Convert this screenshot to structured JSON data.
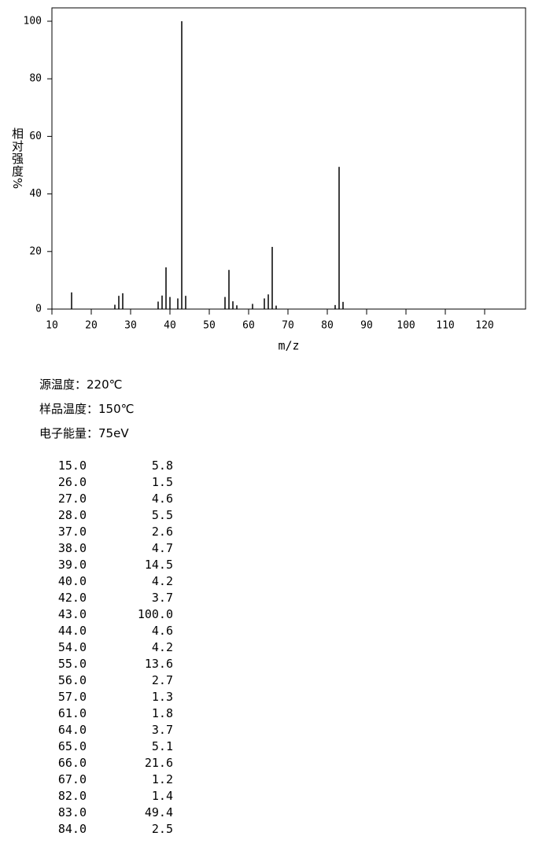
{
  "chart_data": {
    "type": "bar",
    "xlabel": "m/z",
    "ylabel": "相对强度%",
    "x": [
      15,
      26,
      27,
      28,
      37,
      38,
      39,
      40,
      42,
      43,
      44,
      54,
      55,
      56,
      57,
      61,
      64,
      65,
      66,
      67,
      82,
      83,
      84
    ],
    "x_labels": [
      "15.0",
      "26.0",
      "27.0",
      "28.0",
      "37.0",
      "38.0",
      "39.0",
      "40.0",
      "42.0",
      "43.0",
      "44.0",
      "54.0",
      "55.0",
      "56.0",
      "57.0",
      "61.0",
      "64.0",
      "65.0",
      "66.0",
      "67.0",
      "82.0",
      "83.0",
      "84.0"
    ],
    "values": [
      5.8,
      1.5,
      4.6,
      5.5,
      2.6,
      4.7,
      14.5,
      4.2,
      3.7,
      100,
      4.6,
      4.2,
      13.6,
      2.7,
      1.3,
      1.8,
      3.7,
      5.1,
      21.6,
      1.2,
      1.4,
      49.4,
      2.5
    ],
    "value_labels": [
      "5.8",
      "1.5",
      "4.6",
      "5.5",
      "2.6",
      "4.7",
      "14.5",
      "4.2",
      "3.7",
      "100.0",
      "4.6",
      "4.2",
      "13.6",
      "2.7",
      "1.3",
      "1.8",
      "3.7",
      "5.1",
      "21.6",
      "1.2",
      "1.4",
      "49.4",
      "2.5"
    ],
    "color": "#000000",
    "xlim": [
      10,
      130
    ],
    "xticks": [
      10,
      20,
      30,
      40,
      50,
      60,
      70,
      80,
      90,
      100,
      110,
      120
    ],
    "ylim": [
      0,
      105
    ],
    "yticks": [
      0,
      20,
      40,
      60,
      80,
      100
    ]
  },
  "info": [
    "源温度：220℃",
    "样品温度：150℃",
    "电子能量：75eV"
  ]
}
